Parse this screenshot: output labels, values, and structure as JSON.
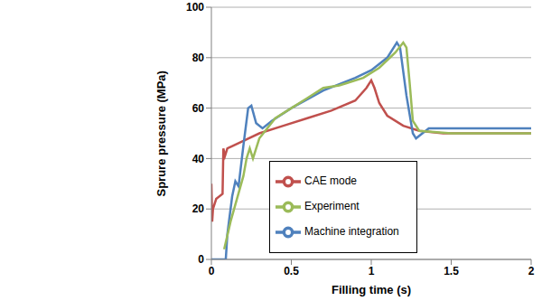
{
  "chart_data": {
    "type": "line",
    "x_label": "Filling time (s)",
    "y_label": "Sprure pressure (MPa)",
    "xlim": [
      0,
      2
    ],
    "xticks": [
      0,
      0.5,
      1,
      1.5,
      2
    ],
    "ylim": [
      0,
      100
    ],
    "yticks": [
      0,
      20,
      40,
      60,
      80,
      100
    ],
    "grid": true,
    "legend": "bottom",
    "series": [
      {
        "name": "CAE mode",
        "color": "#c0504d",
        "x": [
          0,
          0.005,
          0.01,
          0.03,
          0.07,
          0.075,
          0.085,
          0.1,
          0.2,
          0.3,
          0.45,
          0.6,
          0.75,
          0.9,
          0.97,
          1.0,
          1.02,
          1.05,
          1.1,
          1.2,
          1.3,
          1.45,
          2
        ],
        "values": [
          30,
          15,
          20,
          24,
          26,
          44,
          41,
          44,
          47,
          50,
          53,
          56,
          59,
          63,
          68,
          71,
          68,
          62,
          57,
          53,
          51,
          50,
          50
        ]
      },
      {
        "name": "Machine integration",
        "color": "#4f81bd",
        "x": [
          0,
          0.09,
          0.1,
          0.13,
          0.15,
          0.17,
          0.2,
          0.23,
          0.25,
          0.28,
          0.32,
          0.38,
          0.5,
          0.7,
          0.9,
          1.0,
          1.1,
          1.16,
          1.18,
          1.22,
          1.26,
          1.28,
          1.32,
          1.36,
          2
        ],
        "values": [
          0,
          0,
          10,
          25,
          31,
          29,
          45,
          60,
          61,
          54,
          52,
          55,
          60,
          67,
          72,
          75,
          80,
          86,
          84,
          65,
          50,
          48,
          50,
          52,
          52
        ]
      },
      {
        "name": "Experiment",
        "color": "#9bbb59",
        "x": [
          0.08,
          0.12,
          0.2,
          0.22,
          0.24,
          0.26,
          0.3,
          0.4,
          0.5,
          0.6,
          0.7,
          0.8,
          0.85,
          0.95,
          1.05,
          1.15,
          1.2,
          1.22,
          1.24,
          1.26,
          1.3,
          1.5,
          2
        ],
        "values": [
          4,
          15,
          33,
          40,
          44,
          40,
          48,
          56,
          60,
          64,
          68,
          69,
          70,
          72,
          76,
          82,
          86,
          84,
          70,
          55,
          51,
          50,
          50
        ]
      }
    ]
  }
}
